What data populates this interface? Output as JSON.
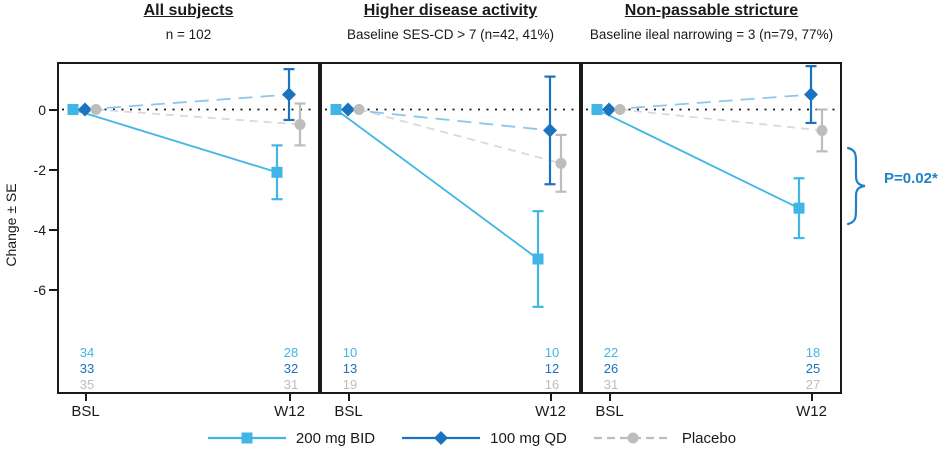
{
  "y_axis": {
    "label": "Change ± SE",
    "ticks": [
      "0",
      "-2",
      "-4",
      "-6"
    ]
  },
  "x_axis": {
    "labels": [
      "BSL",
      "W12"
    ]
  },
  "annotation": {
    "text": "P=0.02*",
    "color": "#1E82C6"
  },
  "legend": {
    "items": [
      {
        "label": "200 mg BID"
      },
      {
        "label": "100 mg QD"
      },
      {
        "label": "Placebo"
      }
    ]
  },
  "chart_data": [
    {
      "type": "line",
      "title": "All subjects",
      "subtitle": "n = 102",
      "x": [
        "BSL",
        "W12"
      ],
      "ylabel": "Change ± SE",
      "ylim": [
        -9.4,
        1.6
      ],
      "yticks": [
        0,
        -2,
        -4,
        -6
      ],
      "reference_line": 0,
      "series": [
        {
          "name": "200 mg BID",
          "marker": "square",
          "line_style": "solid",
          "color": "#41B6E6",
          "line_color": "#41B6E6",
          "values": [
            0,
            -2.1
          ],
          "se": [
            0,
            0.9
          ],
          "n": [
            34,
            28
          ]
        },
        {
          "name": "100 mg QD",
          "marker": "diamond",
          "line_style": "long-dash",
          "color": "#1B72BE",
          "line_color": "#8CC6EC",
          "values": [
            0,
            0.5
          ],
          "se": [
            0,
            0.85
          ],
          "n": [
            33,
            32
          ]
        },
        {
          "name": "Placebo",
          "marker": "circle",
          "line_style": "dash",
          "color": "#BDBDBD",
          "line_color": "#D9D9D9",
          "values": [
            0,
            -0.5
          ],
          "se": [
            0,
            0.7
          ],
          "n": [
            35,
            31
          ]
        }
      ]
    },
    {
      "type": "line",
      "title": "Higher disease activity",
      "subtitle": "Baseline SES-CD > 7 (n=42, 41%)",
      "x": [
        "BSL",
        "W12"
      ],
      "ylabel": "Change ± SE",
      "ylim": [
        -9.4,
        1.6
      ],
      "yticks": [
        0,
        -2,
        -4,
        -6
      ],
      "reference_line": 0,
      "series": [
        {
          "name": "200 mg BID",
          "marker": "square",
          "line_style": "solid",
          "color": "#41B6E6",
          "line_color": "#41B6E6",
          "values": [
            0,
            -5.0
          ],
          "se": [
            0,
            1.6
          ],
          "n": [
            10,
            10
          ]
        },
        {
          "name": "100 mg QD",
          "marker": "diamond",
          "line_style": "long-dash",
          "color": "#1B72BE",
          "line_color": "#8CC6EC",
          "values": [
            0,
            -0.7
          ],
          "se": [
            0,
            1.8
          ],
          "n": [
            13,
            12
          ]
        },
        {
          "name": "Placebo",
          "marker": "circle",
          "line_style": "dash",
          "color": "#BDBDBD",
          "line_color": "#D9D9D9",
          "values": [
            0,
            -1.8
          ],
          "se": [
            0,
            0.95
          ],
          "n": [
            19,
            16
          ]
        }
      ]
    },
    {
      "type": "line",
      "title": "Non-passable stricture",
      "subtitle": "Baseline ileal narrowing = 3 (n=79, 77%)",
      "x": [
        "BSL",
        "W12"
      ],
      "ylabel": "Change ± SE",
      "ylim": [
        -9.4,
        1.6
      ],
      "yticks": [
        0,
        -2,
        -4,
        -6
      ],
      "reference_line": 0,
      "series": [
        {
          "name": "200 mg BID",
          "marker": "square",
          "line_style": "solid",
          "color": "#41B6E6",
          "line_color": "#41B6E6",
          "values": [
            0,
            -3.3
          ],
          "se": [
            0,
            1.0
          ],
          "n": [
            22,
            18
          ]
        },
        {
          "name": "100 mg QD",
          "marker": "diamond",
          "line_style": "long-dash",
          "color": "#1B72BE",
          "line_color": "#8CC6EC",
          "values": [
            0,
            0.5
          ],
          "se": [
            0,
            0.95
          ],
          "n": [
            26,
            25
          ]
        },
        {
          "name": "Placebo",
          "marker": "circle",
          "line_style": "dash",
          "color": "#BDBDBD",
          "line_color": "#D9D9D9",
          "values": [
            0,
            -0.7
          ],
          "se": [
            0,
            0.7
          ],
          "n": [
            31,
            27
          ]
        }
      ]
    }
  ]
}
